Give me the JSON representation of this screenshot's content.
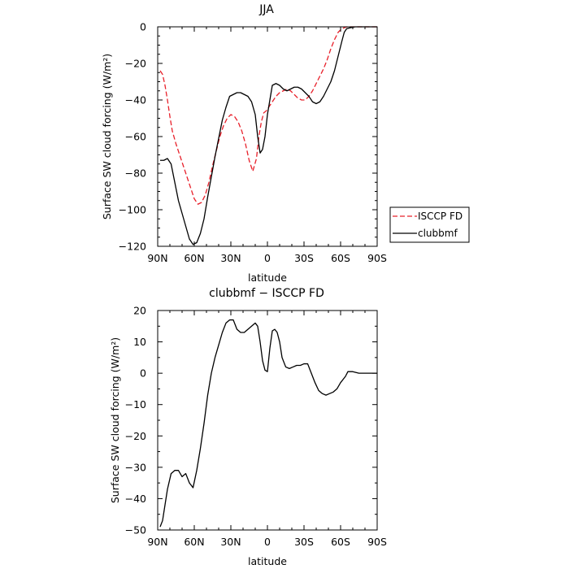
{
  "chart_data": [
    {
      "type": "line",
      "title": "JJA",
      "xlabel": "latitude",
      "ylabel": "Surface SW cloud forcing (W/m²)",
      "ylim": [
        -120,
        0
      ],
      "xlim": [
        90,
        -90
      ],
      "x_ticks": [
        90,
        60,
        30,
        0,
        -30,
        -60,
        -90
      ],
      "x_tick_labels": [
        "90N",
        "60N",
        "30N",
        "0",
        "30S",
        "60S",
        "90S"
      ],
      "y_ticks": [
        0,
        -20,
        -40,
        -60,
        -80,
        -100,
        -120
      ],
      "y_tick_labels": [
        "0",
        "−20",
        "−40",
        "−60",
        "−80",
        "−100",
        "−120"
      ],
      "grid": false,
      "legend": "outside-right",
      "series": [
        {
          "name": "ISCCP FD",
          "color": "#e8202a",
          "dash": "dashed",
          "x": [
            88,
            86,
            84,
            82,
            80,
            78,
            75,
            72,
            69,
            66,
            63,
            60,
            57,
            54,
            51,
            48,
            45,
            42,
            39,
            36,
            33,
            30,
            27,
            24,
            21,
            18,
            15,
            12,
            9,
            7,
            5,
            3,
            1,
            -1,
            -3,
            -5,
            -7,
            -10,
            -13,
            -16,
            -19,
            -22,
            -25,
            -28,
            -31,
            -34,
            -37,
            -40,
            -43,
            -46,
            -49,
            -52,
            -55,
            -58,
            -61,
            -63,
            -65,
            -67,
            -70,
            -75,
            -80,
            -85,
            -90
          ],
          "values": [
            -24,
            -26,
            -32,
            -40,
            -49,
            -57,
            -64,
            -70,
            -76,
            -82,
            -88,
            -94,
            -97,
            -96,
            -92,
            -85,
            -76,
            -68,
            -60,
            -54,
            -50,
            -48,
            -49,
            -52,
            -57,
            -64,
            -73,
            -79,
            -72,
            -60,
            -52,
            -47,
            -46,
            -44,
            -42,
            -40,
            -38,
            -36,
            -35,
            -34,
            -35,
            -37,
            -39,
            -40,
            -40,
            -38,
            -35,
            -31,
            -27,
            -23,
            -18,
            -12,
            -7,
            -3,
            -1,
            -0.5,
            0,
            0,
            0,
            0,
            0,
            0,
            0
          ]
        },
        {
          "name": "clubbmf",
          "color": "#000000",
          "dash": "solid",
          "x": [
            88,
            85,
            82,
            79,
            76,
            73,
            70,
            67,
            64,
            61,
            58,
            55,
            52,
            49,
            46,
            43,
            40,
            37,
            34,
            31,
            28,
            25,
            22,
            19,
            16,
            13,
            10,
            8,
            6,
            4,
            2,
            0,
            -2,
            -4,
            -7,
            -10,
            -13,
            -16,
            -19,
            -22,
            -25,
            -28,
            -31,
            -34,
            -37,
            -40,
            -43,
            -46,
            -49,
            -52,
            -55,
            -58,
            -61,
            -63,
            -65,
            -68,
            -72,
            -76,
            -80,
            -85,
            -90
          ],
          "values": [
            -73,
            -73,
            -72,
            -75,
            -85,
            -95,
            -102,
            -109,
            -116,
            -119,
            -118,
            -113,
            -105,
            -93,
            -82,
            -71,
            -61,
            -51,
            -44,
            -38,
            -37,
            -36,
            -36,
            -37,
            -38,
            -41,
            -48,
            -60,
            -69,
            -67,
            -60,
            -48,
            -40,
            -32,
            -31,
            -32,
            -34,
            -35,
            -34,
            -33,
            -33,
            -34,
            -36,
            -38,
            -41,
            -42,
            -41,
            -38,
            -34,
            -30,
            -24,
            -16,
            -8,
            -3,
            -1,
            -0.5,
            0,
            0,
            0,
            0,
            0
          ]
        }
      ]
    },
    {
      "type": "line",
      "title": "clubbmf − ISCCP FD",
      "xlabel": "latitude",
      "ylabel": "Surface SW cloud forcing (W/m²)",
      "ylim": [
        -50,
        20
      ],
      "xlim": [
        90,
        -90
      ],
      "x_ticks": [
        90,
        60,
        30,
        0,
        -30,
        -60,
        -90
      ],
      "x_tick_labels": [
        "90N",
        "60N",
        "30N",
        "0",
        "30S",
        "60S",
        "90S"
      ],
      "y_ticks": [
        20,
        10,
        0,
        -10,
        -20,
        -30,
        -40,
        -50
      ],
      "y_tick_labels": [
        "20",
        "10",
        "0",
        "−10",
        "−20",
        "−30",
        "−40",
        "−50"
      ],
      "grid": false,
      "series": [
        {
          "color": "#000000",
          "dash": "solid",
          "x": [
            88,
            86,
            84,
            82,
            79,
            76,
            73,
            70,
            67,
            64,
            61,
            58,
            55,
            52,
            49,
            46,
            43,
            40,
            37,
            34,
            31,
            28,
            25,
            22,
            19,
            16,
            13,
            10,
            8,
            6,
            4,
            2,
            0,
            -2,
            -4,
            -6,
            -8,
            -10,
            -12,
            -15,
            -18,
            -21,
            -24,
            -27,
            -30,
            -33,
            -36,
            -39,
            -42,
            -45,
            -48,
            -51,
            -54,
            -57,
            -60,
            -62,
            -64,
            -66,
            -70,
            -75,
            -80,
            -85,
            -90
          ],
          "values": [
            -49,
            -47,
            -42,
            -37,
            -32,
            -31,
            -31,
            -33,
            -32,
            -35,
            -36.5,
            -31,
            -24,
            -16,
            -7,
            0,
            5,
            9,
            13,
            16,
            17,
            17,
            14,
            13,
            13,
            14,
            15,
            16,
            15,
            10,
            4,
            1,
            0.5,
            8,
            13.5,
            14,
            13,
            10,
            5,
            2,
            1.5,
            2,
            2.5,
            2.5,
            3,
            3,
            0,
            -3,
            -5.5,
            -6.5,
            -7,
            -6.5,
            -6,
            -5,
            -3,
            -2,
            -1,
            0.5,
            0.5,
            0,
            0,
            0,
            0
          ]
        }
      ]
    }
  ]
}
